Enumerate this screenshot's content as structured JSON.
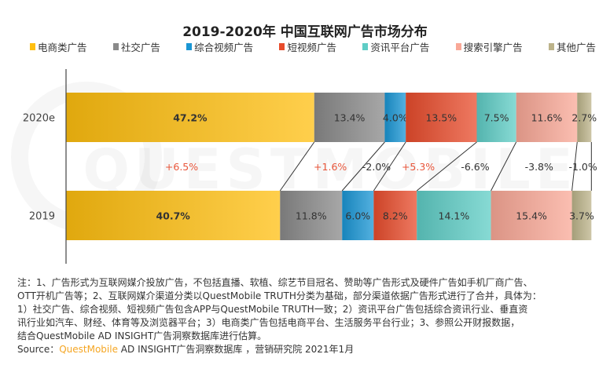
{
  "chart_data": {
    "type": "bar",
    "orientation": "horizontal",
    "stacked": true,
    "title": "2019-2020年 中国互联网广告市场分布",
    "categories": [
      "2020e",
      "2019"
    ],
    "series": [
      {
        "name": "电商类广告",
        "color": "#FFBF10",
        "values": [
          47.2,
          40.7
        ],
        "labels": [
          "47.2%",
          "40.7%"
        ],
        "change": "+6.5%"
      },
      {
        "name": "社交广告",
        "color": "#8a8a8a",
        "values": [
          13.4,
          11.8
        ],
        "labels": [
          "13.4%",
          "11.8%"
        ],
        "change": "+1.6%"
      },
      {
        "name": "综合视频广告",
        "color": "#1a96d4",
        "values": [
          4.0,
          6.0
        ],
        "labels": [
          "4.0%",
          "6.0%"
        ],
        "change": "-2.0%"
      },
      {
        "name": "短视频广告",
        "color": "#e84c2c",
        "values": [
          13.5,
          8.2
        ],
        "labels": [
          "13.5%",
          "8.2%"
        ],
        "change": "+5.3%"
      },
      {
        "name": "资讯平台广告",
        "color": "#5fcdc6",
        "values": [
          7.5,
          14.1
        ],
        "labels": [
          "7.5%",
          "14.1%"
        ],
        "change": "-6.6%"
      },
      {
        "name": "搜索引擎广告",
        "color": "#f9a897",
        "values": [
          11.6,
          15.4
        ],
        "labels": [
          "11.6%",
          "15.4%"
        ],
        "change": "-3.8%"
      },
      {
        "name": "其他广告",
        "color": "#bcb38a",
        "values": [
          2.7,
          3.7
        ],
        "labels": [
          "2.7%",
          "3.7%"
        ],
        "change": "-1.0%"
      }
    ],
    "positive_change_color": "#e8553a",
    "legend_position": "top",
    "grid": false
  },
  "notes": [
    "注：1、广告形式为互联网媒介投放广告，不包括直播、软植、综艺节目冠名、赞助等广告形式及硬件广告如手机厂商广告、",
    "OTT开机广告等；2、互联网媒介渠道分类以QuestMobile TRUTH分类为基础，部分渠道依据广告形式进行了合并，具体为：",
    "1）社交广告、综合视频、短视频广告包含APP与QuestMobile TRUTH一致；2）资讯平台广告包括综合资讯行业、垂直资",
    "讯行业如汽车、财经、体育等及浏览器平台；3）电商类广告包括电商平台、生活服务平台行业；3、参照公开财报数据，",
    "结合QuestMobile AD INSIGHT广告洞察数据库进行估算。"
  ],
  "source": {
    "prefix": "Source：",
    "brand": "QuestMobile",
    "rest": " AD INSIGHT广告洞察数据库 ，营销研究院 2021年1月"
  },
  "watermark": "QUESTMOBILE"
}
